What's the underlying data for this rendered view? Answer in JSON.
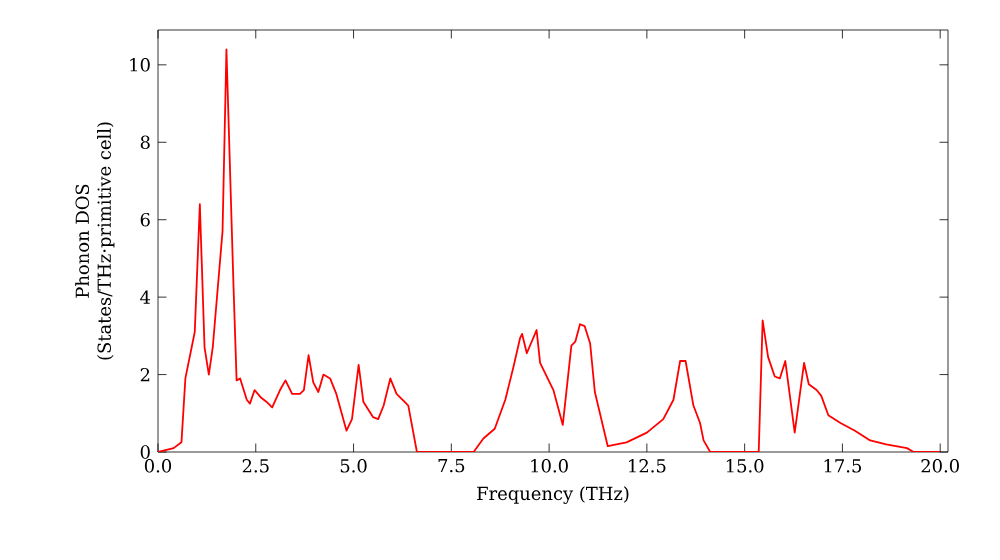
{
  "chart_data": {
    "type": "line",
    "xlabel": "Frequency (THz)",
    "ylabel": "Phonon DOS\n(States/THz·primitive cell)",
    "xlim": [
      0,
      20.2
    ],
    "ylim": [
      0,
      10.9
    ],
    "xticks": [
      {
        "value": 0,
        "label": "0.0"
      },
      {
        "value": 2.5,
        "label": "2.5"
      },
      {
        "value": 5,
        "label": "5.0"
      },
      {
        "value": 7.5,
        "label": "7.5"
      },
      {
        "value": 10,
        "label": "10.0"
      },
      {
        "value": 12.5,
        "label": "12.5"
      },
      {
        "value": 15,
        "label": "15.0"
      },
      {
        "value": 17.5,
        "label": "17.5"
      },
      {
        "value": 20,
        "label": "20.0"
      }
    ],
    "yticks": [
      0,
      2,
      4,
      6,
      8,
      10
    ],
    "series": [
      {
        "color": "#ff0000",
        "x": [
          0,
          0.4,
          0.6,
          0.7,
          0.94,
          1.07,
          1.19,
          1.3,
          1.4,
          1.65,
          1.75,
          1.93,
          2.01,
          2.1,
          2.27,
          2.35,
          2.47,
          2.64,
          2.77,
          2.92,
          3.12,
          3.26,
          3.43,
          3.63,
          3.73,
          3.85,
          3.97,
          4.1,
          4.23,
          4.4,
          4.56,
          4.82,
          4.96,
          5.13,
          5.25,
          5.5,
          5.63,
          5.77,
          5.94,
          6.1,
          6.3,
          6.4,
          6.62,
          8.07,
          8.32,
          8.61,
          8.88,
          9.09,
          9.26,
          9.31,
          9.43,
          9.68,
          9.77,
          10.11,
          10.35,
          10.57,
          10.67,
          10.79,
          10.91,
          11.05,
          11.17,
          11.5,
          11.98,
          12.5,
          12.92,
          13.18,
          13.35,
          13.49,
          13.69,
          13.86,
          13.95,
          14.12,
          15.36,
          15.46,
          15.6,
          15.77,
          15.9,
          16.04,
          16.28,
          16.52,
          16.64,
          16.84,
          16.96,
          17.14,
          17.45,
          17.82,
          18.21,
          18.62,
          19.15,
          19.32,
          20
        ],
        "values": [
          0,
          0.1,
          0.25,
          1.9,
          3.1,
          6.4,
          2.7,
          2.0,
          2.7,
          5.7,
          10.4,
          4.3,
          1.85,
          1.9,
          1.35,
          1.25,
          1.6,
          1.4,
          1.3,
          1.15,
          1.6,
          1.85,
          1.5,
          1.5,
          1.6,
          2.5,
          1.8,
          1.55,
          2.0,
          1.9,
          1.5,
          0.55,
          0.85,
          2.25,
          1.3,
          0.9,
          0.85,
          1.2,
          1.9,
          1.5,
          1.3,
          1.2,
          0,
          0,
          0.35,
          0.6,
          1.35,
          2.2,
          2.95,
          3.05,
          2.55,
          3.15,
          2.3,
          1.6,
          0.7,
          2.75,
          2.85,
          3.3,
          3.25,
          2.8,
          1.55,
          0.15,
          0.25,
          0.5,
          0.85,
          1.35,
          2.35,
          2.35,
          1.2,
          0.75,
          0.3,
          0,
          0,
          3.4,
          2.45,
          1.95,
          1.9,
          2.35,
          0.5,
          2.3,
          1.75,
          1.6,
          1.45,
          0.95,
          0.75,
          0.55,
          0.3,
          0.2,
          0.1,
          0,
          0
        ]
      }
    ]
  }
}
